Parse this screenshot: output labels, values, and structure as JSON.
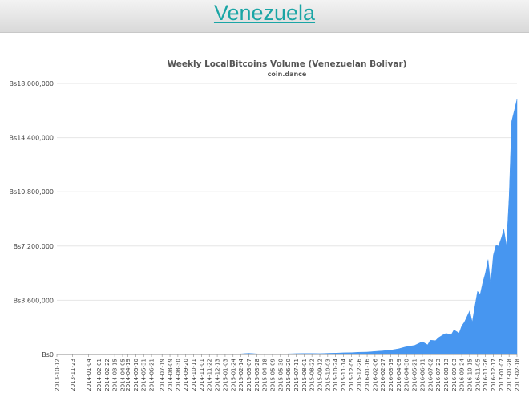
{
  "page": {
    "title": "Venezuela"
  },
  "colors": {
    "area": "#4796f0",
    "title_link": "#1aa5a5",
    "grid": "#e6e6e6"
  },
  "chart_data": {
    "type": "area",
    "title": "Weekly LocalBitcoins Volume (Venezuelan Bolivar)",
    "subtitle": "coin.dance",
    "xlabel": "",
    "ylabel": "",
    "ylim": [
      0,
      18000000
    ],
    "y_ticks": [
      {
        "value": 0,
        "label": "Bs0"
      },
      {
        "value": 3600000,
        "label": "Bs3,600,000"
      },
      {
        "value": 7200000,
        "label": "Bs7,200,000"
      },
      {
        "value": 10800000,
        "label": "Bs10,800,000"
      },
      {
        "value": 14400000,
        "label": "Bs14,400,000"
      },
      {
        "value": 18000000,
        "label": "Bs18,000,000"
      }
    ],
    "x_tick_labels": [
      "2013-10-12",
      "2013-11-23",
      "2014-01-04",
      "2014-02-01",
      "2014-02-22",
      "2014-03-15",
      "2014-04-05",
      "2014-04-19",
      "2014-05-10",
      "2014-05-31",
      "2014-06-21",
      "2014-07-19",
      "2014-08-09",
      "2014-08-30",
      "2014-09-20",
      "2014-10-11",
      "2014-11-01",
      "2014-11-22",
      "2014-12-13",
      "2015-01-03",
      "2015-01-24",
      "2015-02-14",
      "2015-03-07",
      "2015-03-28",
      "2015-04-18",
      "2015-05-09",
      "2015-05-30",
      "2015-06-20",
      "2015-07-11",
      "2015-08-01",
      "2015-08-22",
      "2015-09-12",
      "2015-10-03",
      "2015-10-24",
      "2015-11-14",
      "2015-12-05",
      "2015-12-26",
      "2016-01-16",
      "2016-02-06",
      "2016-02-27",
      "2016-03-19",
      "2016-04-09",
      "2016-04-30",
      "2016-05-21",
      "2016-06-11",
      "2016-07-02",
      "2016-07-23",
      "2016-08-13",
      "2016-09-03",
      "2016-09-24",
      "2016-10-15",
      "2016-11-05",
      "2016-11-26",
      "2016-12-17",
      "2017-01-07",
      "2017-01-28",
      "2017-02-18"
    ],
    "series": [
      {
        "name": "",
        "x": [
          "2013-10-12",
          "2013-11-23",
          "2014-01-04",
          "2014-02-01",
          "2014-02-22",
          "2014-03-15",
          "2014-04-05",
          "2014-04-19",
          "2014-05-10",
          "2014-05-31",
          "2014-06-21",
          "2014-07-19",
          "2014-08-09",
          "2014-08-30",
          "2014-09-20",
          "2014-10-11",
          "2014-11-01",
          "2014-11-22",
          "2014-12-13",
          "2015-01-03",
          "2015-01-24",
          "2015-02-14",
          "2015-03-07",
          "2015-03-28",
          "2015-04-18",
          "2015-05-09",
          "2015-05-30",
          "2015-06-20",
          "2015-07-11",
          "2015-08-01",
          "2015-08-22",
          "2015-09-12",
          "2015-10-03",
          "2015-10-24",
          "2015-11-14",
          "2015-12-05",
          "2015-12-26",
          "2016-01-16",
          "2016-02-06",
          "2016-02-27",
          "2016-03-19",
          "2016-04-09",
          "2016-04-30",
          "2016-05-21",
          "2016-06-11",
          "2016-06-25",
          "2016-07-02",
          "2016-07-16",
          "2016-07-23",
          "2016-08-06",
          "2016-08-13",
          "2016-08-27",
          "2016-09-03",
          "2016-09-17",
          "2016-09-24",
          "2016-10-01",
          "2016-10-15",
          "2016-10-22",
          "2016-10-29",
          "2016-11-05",
          "2016-11-12",
          "2016-11-19",
          "2016-11-26",
          "2016-12-03",
          "2016-12-10",
          "2016-12-17",
          "2016-12-24",
          "2016-12-31",
          "2017-01-07",
          "2017-01-14",
          "2017-01-21",
          "2017-01-28",
          "2017-02-04",
          "2017-02-11",
          "2017-02-18"
        ],
        "y": [
          0,
          0,
          0,
          0,
          0,
          0,
          0,
          0,
          0,
          0,
          0,
          0,
          0,
          0,
          0,
          0,
          0,
          0,
          0,
          10000,
          20000,
          40000,
          80000,
          40000,
          30000,
          20000,
          20000,
          40000,
          60000,
          70000,
          70000,
          60000,
          80000,
          90000,
          110000,
          120000,
          150000,
          160000,
          200000,
          240000,
          290000,
          380000,
          520000,
          600000,
          850000,
          640000,
          950000,
          920000,
          1100000,
          1320000,
          1400000,
          1320000,
          1630000,
          1420000,
          1900000,
          2150000,
          2900000,
          2150000,
          3200000,
          4200000,
          4000000,
          4800000,
          5400000,
          6300000,
          4700000,
          6600000,
          7250000,
          7200000,
          7700000,
          8300000,
          7200000,
          10500000,
          15500000,
          16200000,
          16950000
        ]
      }
    ]
  }
}
